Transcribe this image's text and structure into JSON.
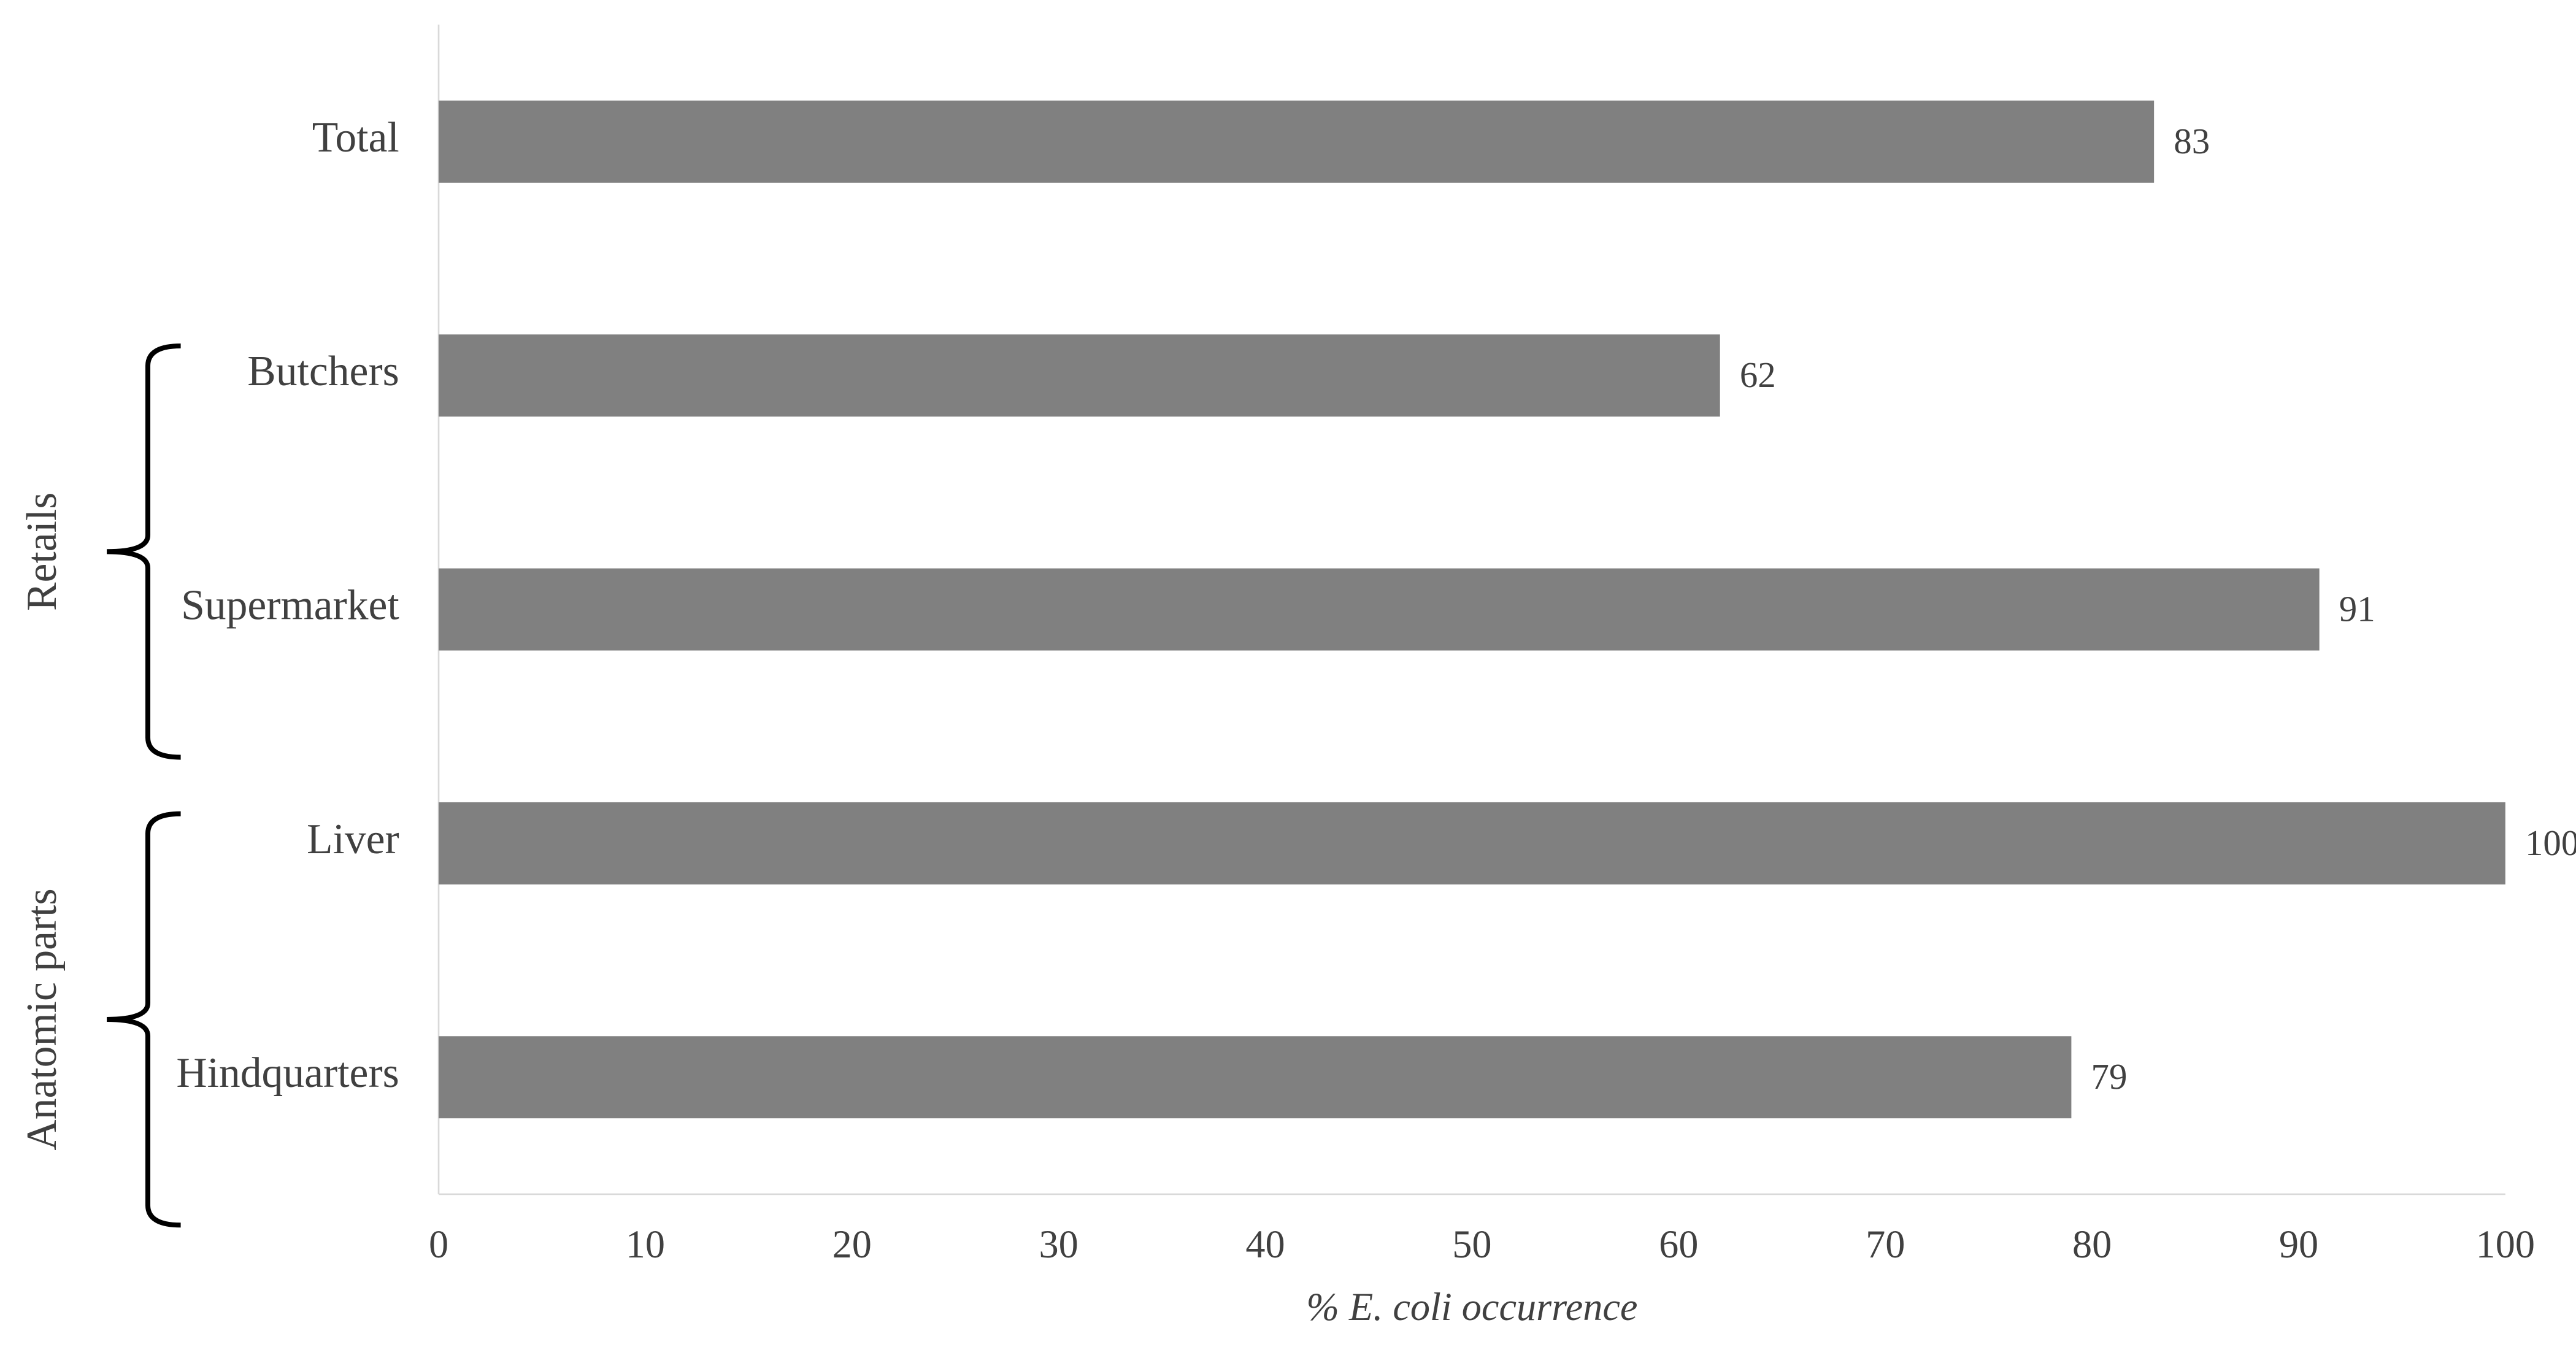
{
  "chart_data": {
    "type": "hbar",
    "categories": [
      "Total",
      "Butchers",
      "Supermarket",
      "Liver",
      "Hindquarters"
    ],
    "values": [
      83,
      62,
      91,
      100,
      79
    ],
    "color": "#808080",
    "xlim": [
      0,
      100
    ],
    "xticks": [
      0,
      10,
      20,
      30,
      40,
      50,
      60,
      70,
      80,
      90,
      100
    ],
    "xlabel": "% E. coli occurrence",
    "groups": [
      {
        "name": "Retails",
        "categories": [
          "Butchers",
          "Supermarket"
        ]
      },
      {
        "name": "Anatomic parts",
        "categories": [
          "Liver",
          "Hindquarters"
        ]
      }
    ]
  }
}
